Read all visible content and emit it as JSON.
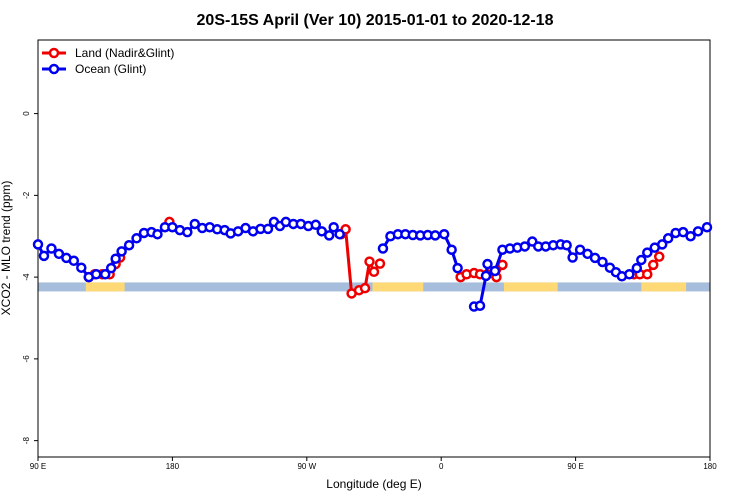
{
  "chart_data": {
    "type": "line",
    "title": "20S-15S April (Ver 10)   2015-01-01 to 2020-12-18",
    "xlabel": "Longitude (deg E)",
    "ylabel": "XCO2 - MLO trend (ppm)",
    "x_axis": {
      "ticks": [
        {
          "value": 90,
          "label": "90 E"
        },
        {
          "value": 180,
          "label": "180"
        },
        {
          "value": 270,
          "label": "90 W"
        },
        {
          "value": 360,
          "label": "0"
        },
        {
          "value": 450,
          "label": "90 E"
        },
        {
          "value": 540,
          "label": "180"
        }
      ],
      "xlim": [
        90,
        540
      ]
    },
    "y_axis": {
      "ticks": [
        {
          "value": 0,
          "label": "0"
        },
        {
          "value": -2,
          "label": "-2"
        },
        {
          "value": -4,
          "label": "-4"
        },
        {
          "value": -6,
          "label": "-6"
        },
        {
          "value": -8,
          "label": "-8"
        }
      ],
      "ylim": [
        -8.4,
        1.8
      ]
    },
    "grid": false,
    "legend_position": "top-left",
    "map_strip": {
      "y_range": [
        -4.35,
        -4.13
      ],
      "ocean_color": "#a6bddb",
      "land_color": "#fed976",
      "land_ranges": [
        [
          122,
          148
        ],
        [
          314,
          348
        ],
        [
          402,
          438
        ],
        [
          494,
          524
        ]
      ]
    },
    "series": [
      {
        "name": "Land (Nadir&Glint)",
        "color": "#ee0000",
        "segments": [
          [
            [
              124,
              -4.0
            ],
            [
              128,
              -3.93
            ],
            [
              133,
              -3.93
            ],
            [
              138,
              -3.93
            ],
            [
              142,
              -3.68
            ],
            [
              145,
              -3.52
            ]
          ],
          [
            [
              178,
              -2.65
            ]
          ],
          [
            [
              293,
              -2.95
            ],
            [
              296,
              -2.83
            ],
            [
              300,
              -4.4
            ],
            [
              305,
              -4.32
            ],
            [
              309,
              -4.27
            ],
            [
              312,
              -3.62
            ],
            [
              315,
              -3.87
            ],
            [
              319,
              -3.67
            ]
          ],
          [
            [
              373,
              -4.0
            ],
            [
              377,
              -3.93
            ],
            [
              382,
              -3.9
            ],
            [
              386,
              -3.93
            ],
            [
              391,
              -3.93
            ],
            [
              397,
              -4.0
            ],
            [
              401,
              -3.7
            ]
          ],
          [
            [
              489,
              -3.93
            ],
            [
              493,
              -3.93
            ],
            [
              498,
              -3.93
            ],
            [
              502,
              -3.7
            ],
            [
              506,
              -3.5
            ]
          ]
        ]
      },
      {
        "name": "Ocean (Glint)",
        "color": "#0000ee",
        "segments": [
          [
            [
              90,
              -3.2
            ],
            [
              94,
              -3.48
            ],
            [
              99,
              -3.3
            ],
            [
              104,
              -3.43
            ],
            [
              109,
              -3.53
            ],
            [
              114,
              -3.6
            ],
            [
              119,
              -3.77
            ],
            [
              124,
              -4.0
            ],
            [
              129,
              -3.93
            ],
            [
              135,
              -3.93
            ],
            [
              139,
              -3.78
            ],
            [
              142,
              -3.55
            ],
            [
              146,
              -3.37
            ],
            [
              151,
              -3.22
            ],
            [
              156,
              -3.05
            ],
            [
              161,
              -2.92
            ],
            [
              166,
              -2.9
            ],
            [
              170,
              -2.95
            ],
            [
              175,
              -2.78
            ],
            [
              180,
              -2.78
            ],
            [
              185,
              -2.85
            ],
            [
              190,
              -2.9
            ],
            [
              195,
              -2.7
            ],
            [
              200,
              -2.8
            ],
            [
              205,
              -2.78
            ],
            [
              210,
              -2.83
            ],
            [
              215,
              -2.85
            ],
            [
              219,
              -2.93
            ],
            [
              224,
              -2.88
            ],
            [
              229,
              -2.8
            ],
            [
              234,
              -2.88
            ],
            [
              239,
              -2.82
            ],
            [
              244,
              -2.82
            ],
            [
              248,
              -2.65
            ],
            [
              252,
              -2.75
            ],
            [
              256,
              -2.65
            ],
            [
              261,
              -2.7
            ],
            [
              266,
              -2.7
            ],
            [
              271,
              -2.75
            ],
            [
              276,
              -2.72
            ],
            [
              280,
              -2.88
            ],
            [
              285,
              -2.98
            ],
            [
              288,
              -2.78
            ],
            [
              292,
              -2.95
            ]
          ],
          [
            [
              321,
              -3.3
            ],
            [
              326,
              -3.0
            ],
            [
              331,
              -2.95
            ],
            [
              336,
              -2.95
            ],
            [
              341,
              -2.97
            ],
            [
              346,
              -2.98
            ],
            [
              351,
              -2.97
            ],
            [
              356,
              -2.98
            ],
            [
              362,
              -2.95
            ],
            [
              367,
              -3.33
            ],
            [
              371,
              -3.78
            ]
          ],
          [
            [
              382,
              -4.72
            ],
            [
              386,
              -4.7
            ],
            [
              390,
              -3.97
            ],
            [
              391,
              -3.68
            ],
            [
              396,
              -3.85
            ],
            [
              401,
              -3.33
            ],
            [
              406,
              -3.3
            ],
            [
              411,
              -3.28
            ],
            [
              416,
              -3.25
            ],
            [
              421,
              -3.13
            ],
            [
              425,
              -3.25
            ],
            [
              430,
              -3.25
            ],
            [
              435,
              -3.22
            ],
            [
              440,
              -3.2
            ],
            [
              444,
              -3.22
            ],
            [
              448,
              -3.52
            ],
            [
              453,
              -3.33
            ],
            [
              458,
              -3.43
            ],
            [
              463,
              -3.53
            ],
            [
              468,
              -3.63
            ],
            [
              473,
              -3.77
            ],
            [
              477,
              -3.88
            ],
            [
              481,
              -3.98
            ],
            [
              486,
              -3.93
            ],
            [
              491,
              -3.78
            ],
            [
              494,
              -3.58
            ],
            [
              498,
              -3.4
            ],
            [
              503,
              -3.28
            ],
            [
              508,
              -3.2
            ],
            [
              512,
              -3.05
            ],
            [
              517,
              -2.92
            ],
            [
              522,
              -2.9
            ],
            [
              527,
              -3.0
            ],
            [
              532,
              -2.88
            ],
            [
              538,
              -2.78
            ]
          ]
        ]
      }
    ]
  }
}
